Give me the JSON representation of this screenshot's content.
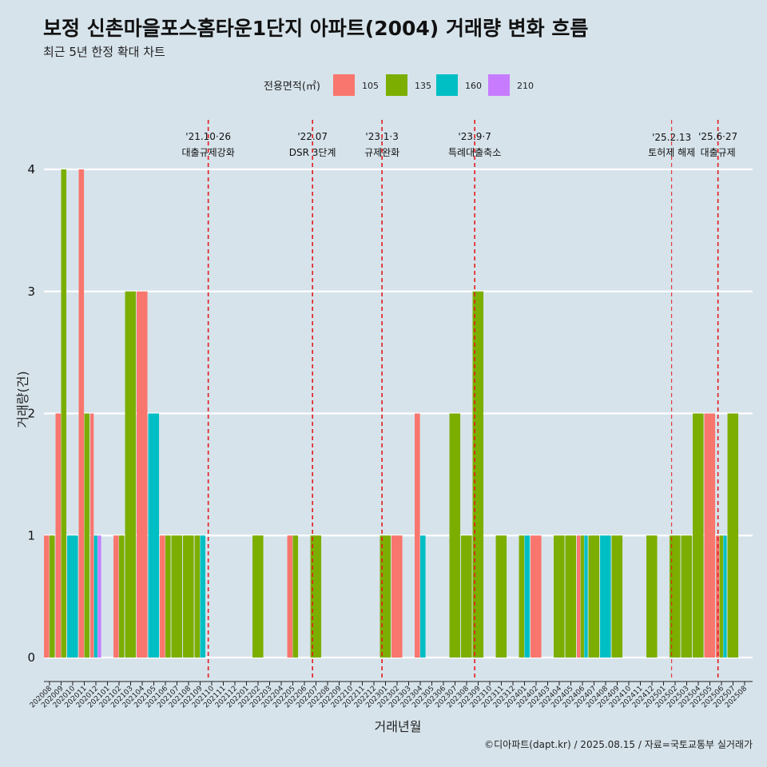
{
  "title": "보정 신촌마을포스홈타운1단지 아파트(2004) 거래량 변화 흐름",
  "subtitle": "최근 5년 한정 확대 차트",
  "caption": "©디아파트(dapt.kr) / 2025.08.15 / 자료=국토교통부 실거래가",
  "colors": {
    "background": "#d6e3eb",
    "grid": "#ffffff",
    "event_line": "#e41a1c",
    "series": {
      "105": "#f8766d",
      "135": "#7cae00",
      "160": "#00bfc4",
      "210": "#c77cff"
    }
  },
  "chart_data": {
    "type": "bar",
    "xlabel": "거래년월",
    "ylabel": "거래량(건)",
    "ylim": [
      0,
      4
    ],
    "yticks": [
      0,
      1,
      2,
      3,
      4
    ],
    "legend": {
      "title": "전용면적(㎡)",
      "position": "top",
      "entries": [
        "105",
        "135",
        "160",
        "210"
      ]
    },
    "grid": true,
    "categories": [
      "202008",
      "202009",
      "202010",
      "202011",
      "202012",
      "202101",
      "202102",
      "202103",
      "202104",
      "202105",
      "202106",
      "202107",
      "202108",
      "202109",
      "202110",
      "202111",
      "202112",
      "202201",
      "202202",
      "202203",
      "202204",
      "202205",
      "202206",
      "202207",
      "202208",
      "202209",
      "202210",
      "202211",
      "202212",
      "202301",
      "202302",
      "202303",
      "202304",
      "202305",
      "202306",
      "202307",
      "202308",
      "202309",
      "202310",
      "202311",
      "202312",
      "202401",
      "202402",
      "202403",
      "202404",
      "202405",
      "202406",
      "202407",
      "202408",
      "202409",
      "202410",
      "202411",
      "202412",
      "202501",
      "202502",
      "202503",
      "202504",
      "202505",
      "202506",
      "202507",
      "202508"
    ],
    "series": [
      {
        "name": "105",
        "values": [
          1,
          2,
          0,
          4,
          2,
          0,
          1,
          0,
          3,
          0,
          1,
          0,
          0,
          0,
          0,
          0,
          0,
          0,
          0,
          0,
          0,
          1,
          0,
          0,
          0,
          0,
          0,
          0,
          0,
          0,
          1,
          0,
          2,
          0,
          0,
          0,
          0,
          0,
          0,
          0,
          0,
          0,
          1,
          0,
          0,
          0,
          1,
          0,
          0,
          0,
          0,
          0,
          0,
          0,
          0,
          0,
          0,
          2,
          1,
          0,
          0
        ]
      },
      {
        "name": "135",
        "values": [
          1,
          4,
          0,
          2,
          0,
          0,
          1,
          3,
          0,
          0,
          1,
          1,
          1,
          1,
          0,
          0,
          0,
          0,
          1,
          0,
          0,
          1,
          0,
          1,
          0,
          0,
          0,
          0,
          0,
          1,
          0,
          0,
          0,
          0,
          0,
          2,
          1,
          3,
          0,
          1,
          0,
          1,
          0,
          0,
          1,
          1,
          1,
          1,
          0,
          1,
          0,
          0,
          1,
          0,
          1,
          1,
          2,
          0,
          1,
          2,
          0
        ]
      },
      {
        "name": "160",
        "values": [
          0,
          0,
          1,
          0,
          1,
          0,
          0,
          0,
          0,
          2,
          0,
          0,
          0,
          1,
          0,
          0,
          0,
          0,
          0,
          0,
          0,
          0,
          0,
          0,
          0,
          0,
          0,
          0,
          0,
          0,
          0,
          0,
          1,
          0,
          0,
          0,
          0,
          0,
          0,
          0,
          0,
          1,
          0,
          0,
          0,
          0,
          1,
          0,
          1,
          0,
          0,
          0,
          0,
          0,
          0,
          0,
          0,
          0,
          1,
          0,
          0
        ]
      },
      {
        "name": "210",
        "values": [
          0,
          0,
          0,
          0,
          1,
          0,
          0,
          0,
          0,
          0,
          0,
          0,
          0,
          0,
          0,
          0,
          0,
          0,
          0,
          0,
          0,
          0,
          0,
          0,
          0,
          0,
          0,
          0,
          0,
          0,
          0,
          0,
          0,
          0,
          0,
          0,
          0,
          0,
          0,
          0,
          0,
          0,
          0,
          0,
          0,
          0,
          0,
          0,
          0,
          0,
          0,
          0,
          0,
          0,
          0,
          0,
          0,
          0,
          0,
          0,
          0
        ]
      }
    ],
    "annotations": [
      {
        "month": "202110",
        "date": "'21.10·26",
        "label": "대출규제강화",
        "style": "bold"
      },
      {
        "month": "202207",
        "date": "'22.07",
        "label": "DSR 3단계",
        "style": "bold"
      },
      {
        "month": "202301",
        "date": "'23.1·3",
        "label": "규제완화",
        "style": "bold"
      },
      {
        "month": "202309",
        "date": "'23.9·7",
        "label": "특례대출축소",
        "style": "bold"
      },
      {
        "month": "202502",
        "date": "'25.2.13",
        "label": "토허제 해제",
        "style": "thin"
      },
      {
        "month": "202506",
        "date": "'25.6·27",
        "label": "대출규제",
        "style": "bold"
      }
    ]
  }
}
